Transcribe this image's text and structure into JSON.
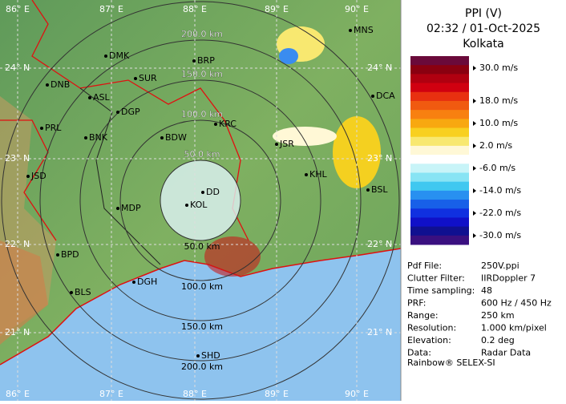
{
  "header": {
    "title": "PPI (V)",
    "time": "02:32 / 01-Oct-2025",
    "station": "Kolkata"
  },
  "legend": {
    "labels": [
      "30.0 m/s",
      "18.0 m/s",
      "10.0 m/s",
      "2.0 m/s",
      "-6.0 m/s",
      "-14.0 m/s",
      "-22.0 m/s",
      "-30.0 m/s"
    ]
  },
  "info": {
    "rows": [
      [
        "Pdf File:",
        "250V.ppi"
      ],
      [
        "Clutter Filter:",
        "IIRDoppler 7"
      ],
      [
        "Time sampling:",
        "48"
      ],
      [
        "PRF:",
        "600 Hz / 450 Hz"
      ],
      [
        "Range:",
        "250 km"
      ],
      [
        "Resolution:",
        "1.000 km/pixel"
      ],
      [
        "Elevation:",
        "0.2 deg"
      ],
      [
        "Data:",
        "Radar Data"
      ]
    ],
    "footer": "Rainbow® SELEX-SI"
  },
  "map": {
    "lon_labels": [
      "86° E",
      "87° E",
      "88° E",
      "89° E",
      "90° E"
    ],
    "lat_labels": [
      "24° N",
      "23° N",
      "22° N",
      "21° N"
    ],
    "range_labels": [
      "50.0 km",
      "100.0 km",
      "150.0 km",
      "200.0 km"
    ],
    "cities": [
      "MNS",
      "DMK",
      "BRP",
      "DNB",
      "SUR",
      "ASL",
      "DCA",
      "DGP",
      "KRC",
      "PRL",
      "BNK",
      "BDW",
      "JSR",
      "KHL",
      "JSD",
      "BSL",
      "DD",
      "KOL",
      "MDP",
      "BPD",
      "DGH",
      "BLS",
      "SHD"
    ]
  }
}
